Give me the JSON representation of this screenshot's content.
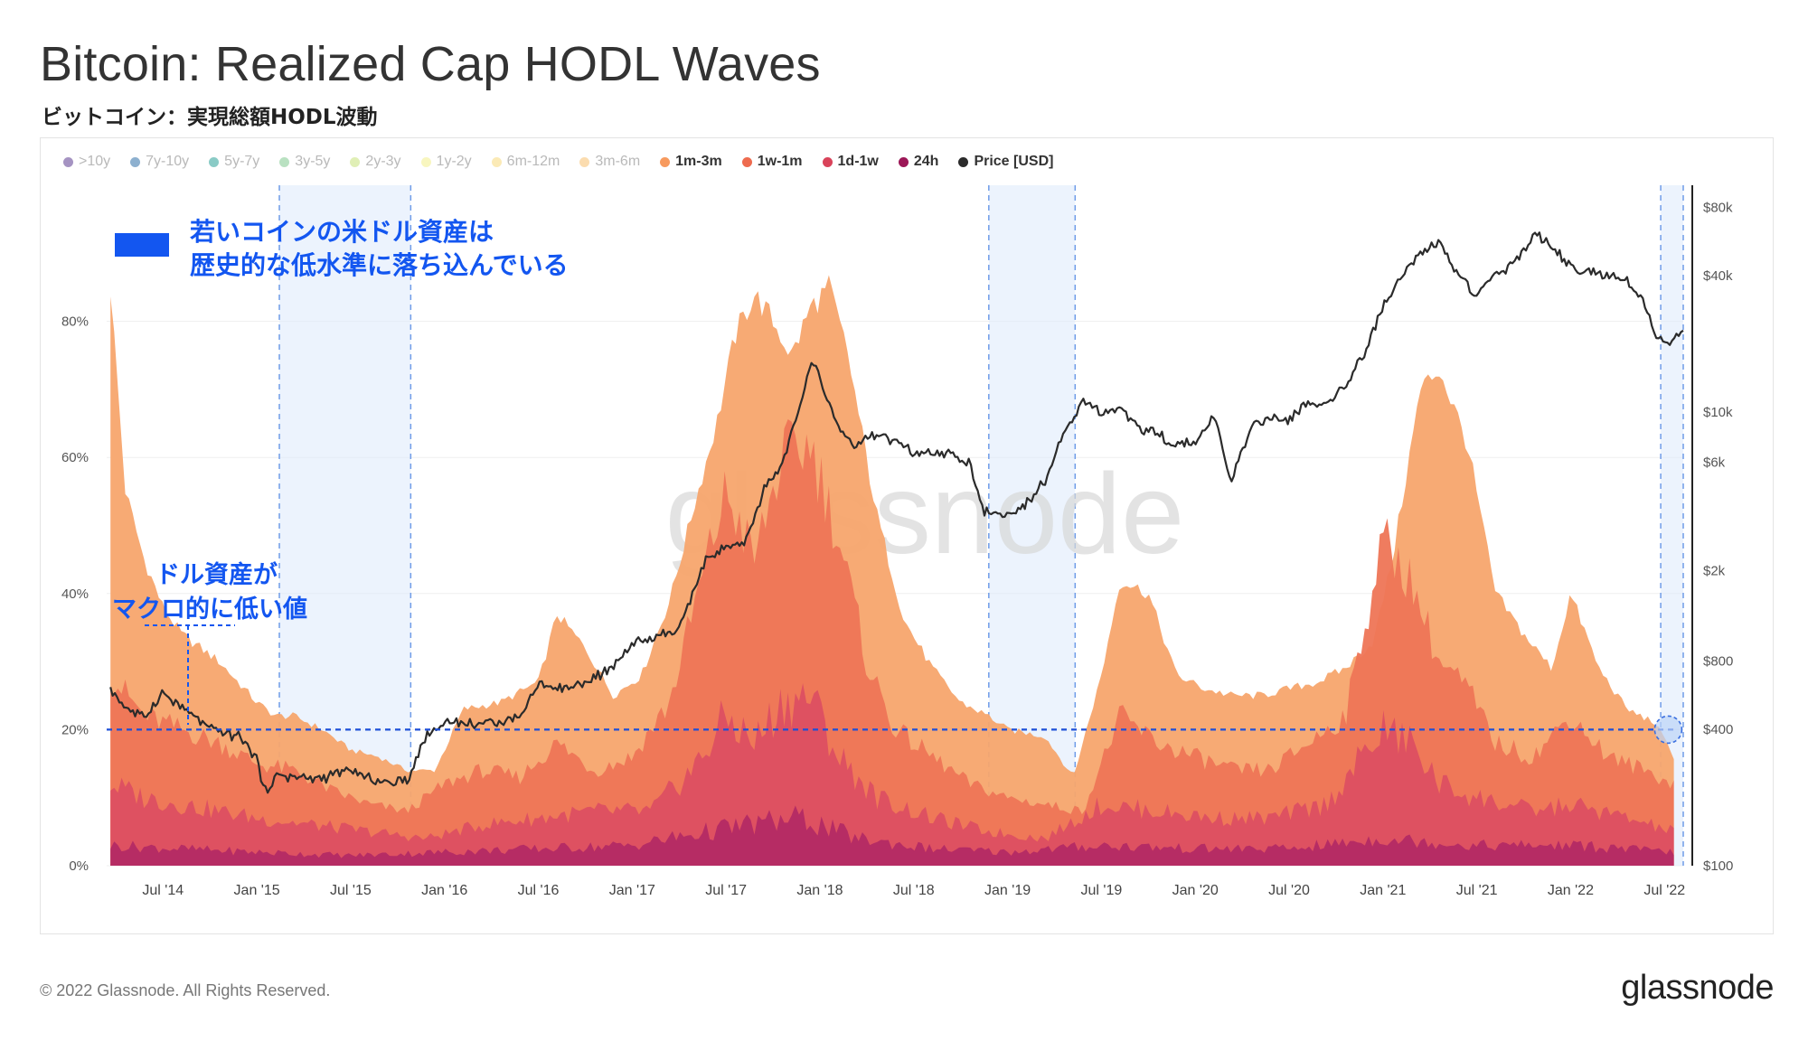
{
  "title": "Bitcoin: Realized Cap HODL Waves",
  "subtitle": "ビットコイン：実現総額HODL波動",
  "legend": [
    {
      "label": ">10y",
      "color": "#5b3a8f",
      "active": false
    },
    {
      "label": "7y-10y",
      "color": "#2f6fa8",
      "active": false
    },
    {
      "label": "5y-7y",
      "color": "#2aa198",
      "active": false
    },
    {
      "label": "3y-5y",
      "color": "#7fc98e",
      "active": false
    },
    {
      "label": "2y-3y",
      "color": "#c6e27a",
      "active": false
    },
    {
      "label": "1y-2y",
      "color": "#f2ee8a",
      "active": false
    },
    {
      "label": "6m-12m",
      "color": "#f7d97a",
      "active": false
    },
    {
      "label": "3m-6m",
      "color": "#f7bf6e",
      "active": false
    },
    {
      "label": "1m-3m",
      "color": "#f79a5e",
      "active": true
    },
    {
      "label": "1w-1m",
      "color": "#ee6b4f",
      "active": true
    },
    {
      "label": "1d-1w",
      "color": "#d9435a",
      "active": true
    },
    {
      "label": "24h",
      "color": "#9c1757",
      "active": true
    },
    {
      "label": "Price [USD]",
      "color": "#2b2b2b",
      "active": true
    }
  ],
  "annotations": {
    "box_text_line1": "若いコインの米ドル資産は",
    "box_text_line2": "歴史的な低水準に落ち込んでいる",
    "macro_line1": "ドル資産が",
    "macro_line2": "マクロ的に低い値",
    "accent_color": "#1356f0"
  },
  "watermark": "glassnode",
  "footer": "© 2022 Glassnode. All Rights Reserved.",
  "brand": "glassnode",
  "chart_data": {
    "type": "area",
    "title": "Bitcoin: Realized Cap HODL Waves",
    "x_ticks": [
      "Jul '14",
      "Jan '15",
      "Jul '15",
      "Jan '16",
      "Jul '16",
      "Jan '17",
      "Jul '17",
      "Jan '18",
      "Jul '18",
      "Jan '19",
      "Jul '19",
      "Jan '20",
      "Jul '20",
      "Jan '21",
      "Jul '21",
      "Jan '22",
      "Jul '22"
    ],
    "x_tick_years": [
      2014.5,
      2015.0,
      2015.5,
      2016.0,
      2016.5,
      2017.0,
      2017.5,
      2018.0,
      2018.5,
      2019.0,
      2019.5,
      2020.0,
      2020.5,
      2021.0,
      2021.5,
      2022.0,
      2022.5
    ],
    "x_range": [
      2014.2,
      2022.6
    ],
    "y_left_ticks": [
      "0%",
      "20%",
      "40%",
      "60%",
      "80%"
    ],
    "y_left_values": [
      0,
      20,
      40,
      60,
      80
    ],
    "y_left_range": [
      0,
      100
    ],
    "y_right_ticks": [
      "$100",
      "$400",
      "$800",
      "$2k",
      "$6k",
      "$10k",
      "$40k",
      "$80k"
    ],
    "y_right_values": [
      100,
      400,
      800,
      2000,
      6000,
      10000,
      40000,
      80000
    ],
    "y_right_range_log": [
      100,
      100000
    ],
    "reference_line_pct": 20,
    "highlight_ranges": [
      [
        2015.12,
        2015.82
      ],
      [
        2018.9,
        2019.36
      ],
      [
        2022.48,
        2022.6
      ]
    ],
    "series": [
      {
        "name": "1m-3m (cumulative top)",
        "color": "#f7a56d",
        "x": [
          2014.22,
          2014.3,
          2014.4,
          2014.5,
          2014.6,
          2014.7,
          2014.8,
          2014.9,
          2015.0,
          2015.1,
          2015.2,
          2015.35,
          2015.5,
          2015.65,
          2015.8,
          2015.95,
          2016.1,
          2016.3,
          2016.5,
          2016.6,
          2016.75,
          2016.9,
          2017.05,
          2017.2,
          2017.35,
          2017.45,
          2017.55,
          2017.65,
          2017.75,
          2017.85,
          2017.95,
          2018.05,
          2018.15,
          2018.3,
          2018.45,
          2018.6,
          2018.75,
          2018.9,
          2019.0,
          2019.2,
          2019.35,
          2019.5,
          2019.6,
          2019.75,
          2019.9,
          2020.05,
          2020.2,
          2020.35,
          2020.5,
          2020.65,
          2020.8,
          2020.95,
          2021.05,
          2021.2,
          2021.3,
          2021.45,
          2021.6,
          2021.75,
          2021.9,
          2022.0,
          2022.15,
          2022.3,
          2022.45,
          2022.55
        ],
        "values": [
          85,
          55,
          45,
          38,
          34,
          32,
          30,
          27,
          24,
          22,
          22,
          20,
          17,
          16,
          14,
          14,
          23,
          24,
          27,
          37,
          32,
          25,
          28,
          39,
          55,
          65,
          78,
          84,
          80,
          75,
          82,
          85,
          75,
          52,
          36,
          29,
          24,
          22,
          20,
          19,
          13,
          28,
          42,
          40,
          28,
          26,
          25,
          25,
          26,
          27,
          29,
          33,
          45,
          70,
          73,
          62,
          40,
          34,
          29,
          40,
          29,
          23,
          21,
          16
        ]
      },
      {
        "name": "1w-1m (cumulative top)",
        "color": "#ee7556",
        "x": [
          2014.22,
          2014.4,
          2014.6,
          2014.8,
          2015.0,
          2015.2,
          2015.4,
          2015.6,
          2015.8,
          2016.0,
          2016.2,
          2016.4,
          2016.6,
          2016.8,
          2017.0,
          2017.2,
          2017.35,
          2017.5,
          2017.65,
          2017.8,
          2017.95,
          2018.1,
          2018.25,
          2018.4,
          2018.6,
          2018.8,
          2019.0,
          2019.2,
          2019.4,
          2019.6,
          2019.8,
          2020.0,
          2020.2,
          2020.4,
          2020.6,
          2020.8,
          2021.0,
          2021.15,
          2021.3,
          2021.45,
          2021.6,
          2021.8,
          2022.0,
          2022.2,
          2022.4,
          2022.55
        ],
        "values": [
          28,
          22,
          20,
          18,
          15,
          14,
          11,
          9,
          8,
          12,
          14,
          13,
          18,
          14,
          16,
          24,
          40,
          55,
          45,
          60,
          62,
          48,
          30,
          20,
          16,
          12,
          10,
          9,
          8,
          22,
          18,
          16,
          14,
          14,
          18,
          22,
          48,
          42,
          30,
          26,
          18,
          16,
          22,
          16,
          14,
          12
        ]
      },
      {
        "name": "1d-1w (cumulative top)",
        "color": "#dc4f62",
        "x": [
          2014.22,
          2014.4,
          2014.6,
          2014.8,
          2015.0,
          2015.3,
          2015.6,
          2015.9,
          2016.2,
          2016.5,
          2016.8,
          2017.1,
          2017.35,
          2017.5,
          2017.65,
          2017.8,
          2017.95,
          2018.1,
          2018.3,
          2018.6,
          2018.9,
          2019.2,
          2019.5,
          2019.8,
          2020.1,
          2020.4,
          2020.7,
          2021.0,
          2021.15,
          2021.3,
          2021.5,
          2021.8,
          2022.0,
          2022.3,
          2022.55
        ],
        "values": [
          12,
          10,
          9,
          8,
          7,
          6,
          5,
          4,
          6,
          7,
          8,
          8,
          15,
          22,
          18,
          24,
          25,
          16,
          10,
          7,
          5,
          4,
          9,
          8,
          7,
          7,
          9,
          20,
          18,
          12,
          10,
          8,
          9,
          7,
          5
        ]
      },
      {
        "name": "24h (cumulative top)",
        "color": "#b32a64",
        "x": [
          2014.22,
          2014.6,
          2015.0,
          2015.5,
          2016.0,
          2016.5,
          2017.0,
          2017.4,
          2017.6,
          2017.9,
          2018.2,
          2018.6,
          2019.0,
          2019.5,
          2020.0,
          2020.5,
          2021.0,
          2021.5,
          2022.0,
          2022.55
        ],
        "values": [
          3,
          2.5,
          2,
          1.5,
          2,
          2.5,
          3,
          5,
          6,
          7,
          4,
          2.5,
          2,
          3,
          2.5,
          2.5,
          4,
          3,
          3,
          2
        ]
      },
      {
        "name": "Price [USD]",
        "color": "#2b2b2b",
        "x": [
          2014.22,
          2014.3,
          2014.4,
          2014.5,
          2014.6,
          2014.75,
          2014.9,
          2015.0,
          2015.04,
          2015.1,
          2015.3,
          2015.5,
          2015.7,
          2015.8,
          2015.9,
          2016.0,
          2016.2,
          2016.4,
          2016.5,
          2016.6,
          2016.75,
          2016.9,
          2017.0,
          2017.1,
          2017.25,
          2017.4,
          2017.5,
          2017.6,
          2017.7,
          2017.8,
          2017.9,
          2017.96,
          2018.05,
          2018.1,
          2018.2,
          2018.3,
          2018.4,
          2018.5,
          2018.6,
          2018.7,
          2018.8,
          2018.87,
          2018.95,
          2019.05,
          2019.2,
          2019.3,
          2019.4,
          2019.5,
          2019.6,
          2019.7,
          2019.8,
          2019.9,
          2020.0,
          2020.1,
          2020.19,
          2020.3,
          2020.4,
          2020.5,
          2020.6,
          2020.7,
          2020.8,
          2020.9,
          2021.0,
          2021.1,
          2021.2,
          2021.3,
          2021.4,
          2021.5,
          2021.6,
          2021.7,
          2021.8,
          2021.87,
          2021.95,
          2022.05,
          2022.2,
          2022.3,
          2022.4,
          2022.45,
          2022.5,
          2022.6
        ],
        "values": [
          600,
          500,
          450,
          580,
          500,
          400,
          370,
          300,
          210,
          250,
          240,
          260,
          230,
          240,
          370,
          430,
          420,
          450,
          650,
          600,
          640,
          750,
          950,
          1000,
          1100,
          2300,
          2500,
          2600,
          4500,
          6000,
          11000,
          17000,
          11000,
          8500,
          7000,
          8000,
          7500,
          6500,
          6500,
          6500,
          6000,
          3700,
          3500,
          3600,
          5000,
          8000,
          11000,
          10000,
          10500,
          8500,
          8000,
          7200,
          7500,
          9500,
          5000,
          8700,
          9300,
          9200,
          11000,
          10700,
          13000,
          18000,
          29000,
          40000,
          50000,
          56000,
          40000,
          33000,
          40000,
          45000,
          60000,
          57000,
          48000,
          42000,
          40000,
          38000,
          30000,
          22000,
          20000,
          23000
        ]
      }
    ]
  }
}
